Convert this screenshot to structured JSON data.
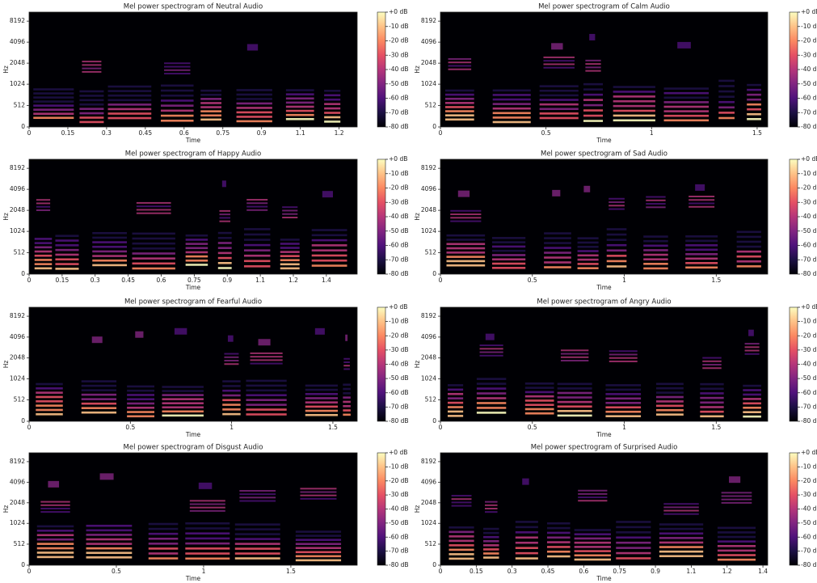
{
  "chart_data": [
    {
      "type": "spectrogram",
      "title": "Mel power spectrogram of Neutral Audio",
      "xlabel": "Time",
      "ylabel": "Hz",
      "xlim": [
        0,
        1.27
      ],
      "xticks": [
        0,
        0.15,
        0.3,
        0.45,
        0.6,
        0.75,
        0.9,
        {
          "value": 1.05,
          "label": "1.1"
        },
        1.2
      ],
      "ylim": [
        0,
        11025
      ],
      "yscale": "symlog",
      "yticks": [
        0,
        512,
        1024,
        2048,
        4096,
        8192
      ],
      "colormap": "magma",
      "clim": [
        -80,
        0
      ],
      "cticks": [
        {
          "value": 0,
          "label": "+0 dB"
        },
        {
          "value": -10,
          "label": "-10 dB"
        },
        {
          "value": -20,
          "label": "-20 dB"
        },
        {
          "value": -30,
          "label": "-30 dB"
        },
        {
          "value": -40,
          "label": "-40 dB"
        },
        {
          "value": -50,
          "label": "-50 dB"
        },
        {
          "value": -60,
          "label": "-60 dB"
        },
        {
          "value": -70,
          "label": "-70 dB"
        },
        {
          "value": -80,
          "label": "-80 dB"
        }
      ]
    },
    {
      "type": "spectrogram",
      "title": "Mel power spectrogram of Calm Audio",
      "xlabel": "Time",
      "ylabel": "Hz",
      "xlim": [
        0,
        1.55
      ],
      "xticks": [
        0,
        0.5,
        1,
        1.5
      ],
      "ylim": [
        0,
        11025
      ],
      "yscale": "symlog",
      "yticks": [
        0,
        512,
        1024,
        2048,
        4096,
        8192
      ],
      "colormap": "magma",
      "clim": [
        -80,
        0
      ],
      "cticks": [
        {
          "value": 0,
          "label": "+0 dB"
        },
        {
          "value": -10,
          "label": "-10 dB"
        },
        {
          "value": -20,
          "label": "-20 dB"
        },
        {
          "value": -30,
          "label": "-30 dB"
        },
        {
          "value": -40,
          "label": "-40 dB"
        },
        {
          "value": -50,
          "label": "-50 dB"
        },
        {
          "value": -60,
          "label": "-60 dB"
        },
        {
          "value": -70,
          "label": "-70 dB"
        },
        {
          "value": -80,
          "label": "-80 dB"
        }
      ]
    },
    {
      "type": "spectrogram",
      "title": "Mel power spectrogram of Happy Audio",
      "xlabel": "Time",
      "ylabel": "Hz",
      "xlim": [
        0,
        1.49
      ],
      "xticks": [
        0,
        0.15,
        0.3,
        0.45,
        0.6,
        0.75,
        0.9,
        {
          "value": 1.05,
          "label": "1.1"
        },
        1.2,
        {
          "value": 1.35,
          "label": "1.4"
        }
      ],
      "ylim": [
        0,
        11025
      ],
      "yscale": "symlog",
      "yticks": [
        0,
        512,
        1024,
        2048,
        4096,
        8192
      ],
      "colormap": "magma",
      "clim": [
        -80,
        0
      ],
      "cticks": [
        {
          "value": 0,
          "label": "+0 dB"
        },
        {
          "value": -10,
          "label": "-10 dB"
        },
        {
          "value": -20,
          "label": "-20 dB"
        },
        {
          "value": -30,
          "label": "-30 dB"
        },
        {
          "value": -40,
          "label": "-40 dB"
        },
        {
          "value": -50,
          "label": "-50 dB"
        },
        {
          "value": -60,
          "label": "-60 dB"
        },
        {
          "value": -70,
          "label": "-70 dB"
        },
        {
          "value": -80,
          "label": "-80 dB"
        }
      ]
    },
    {
      "type": "spectrogram",
      "title": "Mel power spectrogram of Sad Audio",
      "xlabel": "Time",
      "ylabel": "Hz",
      "xlim": [
        0,
        1.78
      ],
      "xticks": [
        0,
        0.5,
        1,
        1.5
      ],
      "ylim": [
        0,
        11025
      ],
      "yscale": "symlog",
      "yticks": [
        0,
        512,
        1024,
        2048,
        4096,
        8192
      ],
      "colormap": "magma",
      "clim": [
        -80,
        0
      ],
      "cticks": [
        {
          "value": 0,
          "label": "+0 dB"
        },
        {
          "value": -10,
          "label": "-10 dB"
        },
        {
          "value": -20,
          "label": "-20 dB"
        },
        {
          "value": -30,
          "label": "-30 dB"
        },
        {
          "value": -40,
          "label": "-40 dB"
        },
        {
          "value": -50,
          "label": "-50 dB"
        },
        {
          "value": -60,
          "label": "-60 dB"
        },
        {
          "value": -70,
          "label": "-70 dB"
        },
        {
          "value": -80,
          "label": "-80 dB"
        }
      ]
    },
    {
      "type": "spectrogram",
      "title": "Mel power spectrogram of Fearful Audio",
      "xlabel": "Time",
      "ylabel": "Hz",
      "xlim": [
        0,
        1.62
      ],
      "xticks": [
        0,
        0.5,
        1,
        1.5
      ],
      "ylim": [
        0,
        11025
      ],
      "yscale": "symlog",
      "yticks": [
        0,
        512,
        1024,
        2048,
        4096,
        8192
      ],
      "colormap": "magma",
      "clim": [
        -80,
        0
      ],
      "cticks": [
        {
          "value": 0,
          "label": "+0 dB"
        },
        {
          "value": -10,
          "label": "-10 dB"
        },
        {
          "value": -20,
          "label": "-20 dB"
        },
        {
          "value": -30,
          "label": "-30 dB"
        },
        {
          "value": -40,
          "label": "-40 dB"
        },
        {
          "value": -50,
          "label": "-50 dB"
        },
        {
          "value": -60,
          "label": "-60 dB"
        },
        {
          "value": -70,
          "label": "-70 dB"
        },
        {
          "value": -80,
          "label": "-80 dB"
        }
      ]
    },
    {
      "type": "spectrogram",
      "title": "Mel power spectrogram of Angry Audio",
      "xlabel": "Time",
      "ylabel": "Hz",
      "xlim": [
        0,
        1.78
      ],
      "xticks": [
        0,
        0.5,
        1,
        1.5
      ],
      "ylim": [
        0,
        11025
      ],
      "yscale": "symlog",
      "yticks": [
        0,
        512,
        1024,
        2048,
        4096,
        8192
      ],
      "colormap": "magma",
      "clim": [
        -80,
        0
      ],
      "cticks": [
        {
          "value": 0,
          "label": "+0 dB"
        },
        {
          "value": -10,
          "label": "-10 dB"
        },
        {
          "value": -20,
          "label": "-20 dB"
        },
        {
          "value": -30,
          "label": "-30 dB"
        },
        {
          "value": -40,
          "label": "-40 dB"
        },
        {
          "value": -50,
          "label": "-50 dB"
        },
        {
          "value": -60,
          "label": "-60 dB"
        },
        {
          "value": -70,
          "label": "-70 dB"
        },
        {
          "value": -80,
          "label": "-80 dB"
        }
      ]
    },
    {
      "type": "spectrogram",
      "title": "Mel power spectrogram of Disgust Audio",
      "xlabel": "Time",
      "ylabel": "Hz",
      "xlim": [
        0,
        1.88
      ],
      "xticks": [
        0,
        0.5,
        1,
        1.5
      ],
      "ylim": [
        0,
        11025
      ],
      "yscale": "symlog",
      "yticks": [
        0,
        512,
        1024,
        2048,
        4096,
        8192
      ],
      "colormap": "magma",
      "clim": [
        -80,
        0
      ],
      "cticks": [
        {
          "value": 0,
          "label": "+0 dB"
        },
        {
          "value": -10,
          "label": "-10 dB"
        },
        {
          "value": -20,
          "label": "-20 dB"
        },
        {
          "value": -30,
          "label": "-30 dB"
        },
        {
          "value": -40,
          "label": "-40 dB"
        },
        {
          "value": -50,
          "label": "-50 dB"
        },
        {
          "value": -60,
          "label": "-60 dB"
        },
        {
          "value": -70,
          "label": "-70 dB"
        },
        {
          "value": -80,
          "label": "-80 dB"
        }
      ]
    },
    {
      "type": "spectrogram",
      "title": "Mel power spectrogram of Surprised Audio",
      "xlabel": "Time",
      "ylabel": "Hz",
      "xlim": [
        0,
        1.37
      ],
      "xticks": [
        0,
        0.15,
        0.3,
        0.45,
        0.6,
        0.75,
        0.9,
        {
          "value": 1.05,
          "label": "1.1"
        },
        1.2,
        {
          "value": 1.35,
          "label": "1.4"
        }
      ],
      "ylim": [
        0,
        11025
      ],
      "yscale": "symlog",
      "yticks": [
        0,
        512,
        1024,
        2048,
        4096,
        8192
      ],
      "colormap": "magma",
      "clim": [
        -80,
        0
      ],
      "cticks": [
        {
          "value": 0,
          "label": "+0 dB"
        },
        {
          "value": -10,
          "label": "-10 dB"
        },
        {
          "value": -20,
          "label": "-20 dB"
        },
        {
          "value": -30,
          "label": "-30 dB"
        },
        {
          "value": -40,
          "label": "-40 dB"
        },
        {
          "value": -50,
          "label": "-50 dB"
        },
        {
          "value": -60,
          "label": "-60 dB"
        },
        {
          "value": -70,
          "label": "-70 dB"
        },
        {
          "value": -80,
          "label": "-80 dB"
        }
      ]
    }
  ]
}
